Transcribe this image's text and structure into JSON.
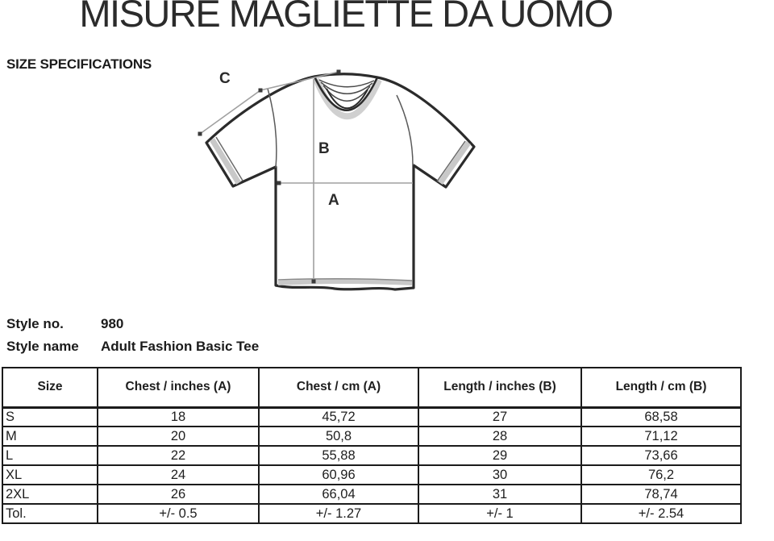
{
  "title": "MISURE MAGLIETTE DA UOMO",
  "subtitle": "SIZE SPECIFICATIONS",
  "style_info": {
    "style_no_label": "Style no.",
    "style_no_value": "980",
    "style_name_label": "Style name",
    "style_name_value": "Adult Fashion Basic Tee"
  },
  "diagram": {
    "label_a": "A",
    "label_b": "B",
    "label_c": "C"
  },
  "table": {
    "headers": [
      "Size",
      "Chest / inches (A)",
      "Chest / cm (A)",
      "Length / inches (B)",
      "Length / cm (B)"
    ],
    "rows": [
      [
        "S",
        "18",
        "45,72",
        "27",
        "68,58"
      ],
      [
        "M",
        "20",
        "50,8",
        "28",
        "71,12"
      ],
      [
        "L",
        "22",
        "55,88",
        "29",
        "73,66"
      ],
      [
        "XL",
        "24",
        "60,96",
        "30",
        "76,2"
      ],
      [
        "2XL",
        "26",
        "66,04",
        "31",
        "78,74"
      ],
      [
        "Tol.",
        "+/- 0.5",
        "+/- 1.27",
        "+/- 1",
        "+/- 2.54"
      ]
    ]
  },
  "colors": {
    "ink": "#2b2b2b",
    "border": "#1b1b1b",
    "measure_line": "#a0a0a0",
    "shade": "#c8c8c8"
  }
}
